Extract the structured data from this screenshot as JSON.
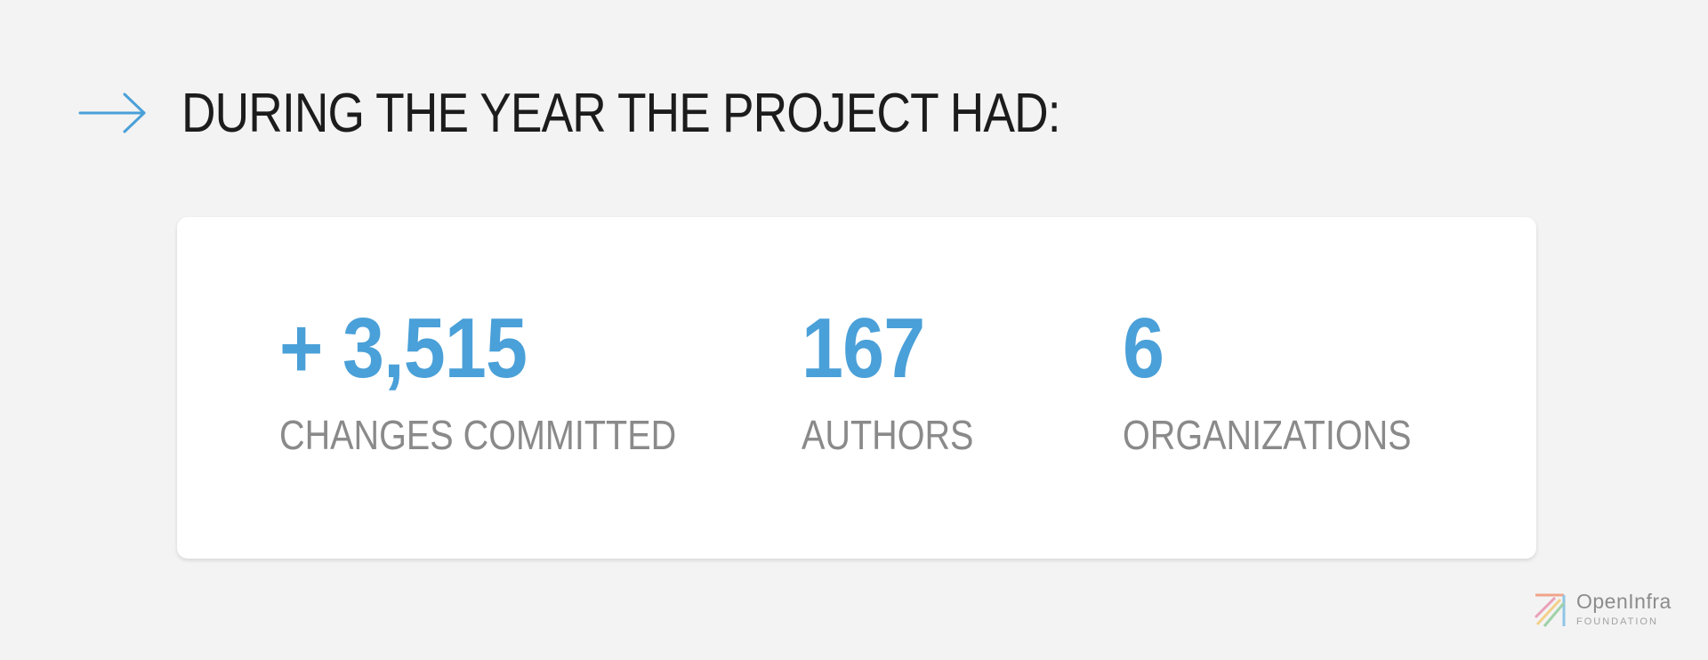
{
  "header": {
    "icon": "arrow-right-icon",
    "title": "DURING THE YEAR THE PROJECT HAD:"
  },
  "stats": [
    {
      "value": "+ 3,515",
      "label": "CHANGES COMMITTED"
    },
    {
      "value": "167",
      "label": "AUTHORS"
    },
    {
      "value": "6",
      "label": "ORGANIZATIONS"
    }
  ],
  "logo": {
    "name": "OpenInfra",
    "subtitle": "FOUNDATION"
  },
  "colors": {
    "background": "#f3f3f3",
    "card": "#ffffff",
    "accent": "#4aa0d8",
    "heading": "#1c1c1c",
    "label": "#8a8a8a"
  }
}
